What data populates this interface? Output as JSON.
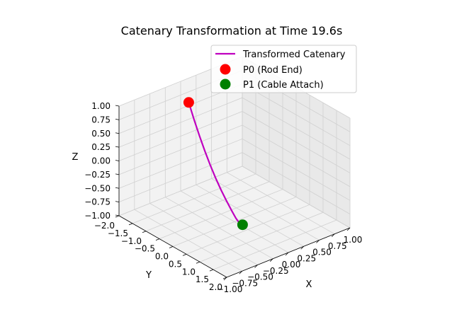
{
  "chart_data": {
    "type": "line3d",
    "title": "Catenary Transformation at Time 19.6s",
    "xlabel": "X",
    "ylabel": "Y",
    "zlabel": "Z",
    "xlim": [
      -1.0,
      1.0
    ],
    "ylim": [
      -2.0,
      2.0
    ],
    "zlim": [
      -1.0,
      1.0
    ],
    "xticks": [
      "−1.00",
      "−0.75",
      "−0.50",
      "−0.25",
      "0.00",
      "0.25",
      "0.50",
      "0.75",
      "1.00"
    ],
    "yticks": [
      "−2.0",
      "−1.5",
      "−1.0",
      "−0.5",
      "0.0",
      "0.5",
      "1.0",
      "1.5",
      "2.0"
    ],
    "zticks": [
      "−1.00",
      "−0.75",
      "−0.50",
      "−0.25",
      "0.00",
      "0.25",
      "0.50",
      "0.75",
      "1.00"
    ],
    "grid": true,
    "legend_position": "top-right",
    "colors": {
      "curve": "#bf00bf",
      "p0": "#ff0000",
      "p1": "#008000"
    },
    "series": [
      {
        "name": "Transformed Catenary",
        "kind": "line",
        "x": [
          0.0,
          0.0,
          0.0,
          0.0,
          0.0,
          0.0,
          0.0,
          0.0,
          0.0,
          0.0,
          0.0,
          0.0
        ],
        "y": [
          -1.7,
          -1.5,
          -1.3,
          -1.1,
          -0.9,
          -0.7,
          -0.5,
          -0.3,
          -0.1,
          0.05,
          0.2,
          0.3
        ],
        "z": [
          0.7,
          0.44,
          0.2,
          -0.02,
          -0.22,
          -0.4,
          -0.56,
          -0.7,
          -0.83,
          -0.92,
          -0.98,
          -0.97
        ]
      },
      {
        "name": "P0 (Rod End)",
        "kind": "point",
        "x": [
          0.0
        ],
        "y": [
          -1.7
        ],
        "z": [
          0.7
        ]
      },
      {
        "name": "P1 (Cable Attach)",
        "kind": "point",
        "x": [
          0.0
        ],
        "y": [
          0.3
        ],
        "z": [
          -0.97
        ]
      }
    ]
  }
}
